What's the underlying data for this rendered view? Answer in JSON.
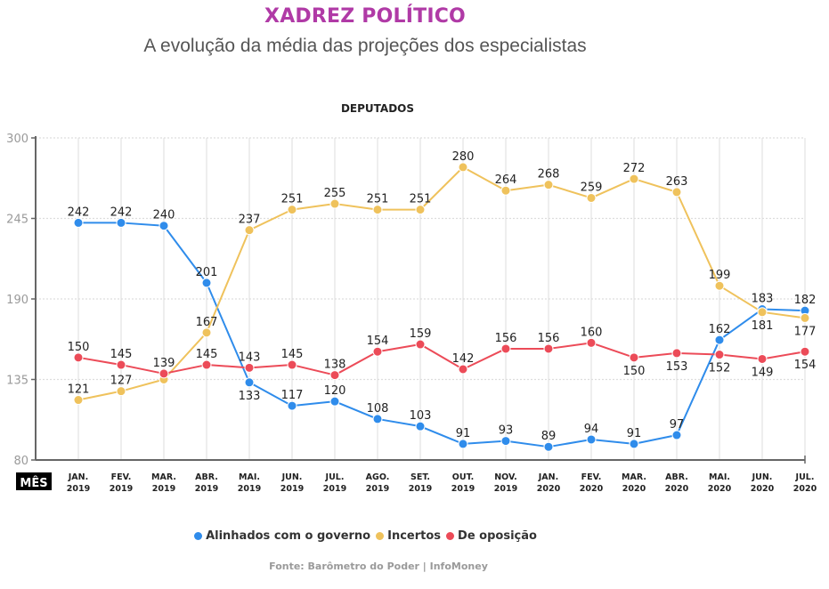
{
  "header": {
    "title": "XADREZ POLÍTICO",
    "title_color": "#b03aa6",
    "subtitle": "A evolução da média das projeções dos especialistas"
  },
  "chart_data": {
    "type": "line",
    "title": "DEPUTADOS",
    "xlabel": "MÊS",
    "ylabel": "",
    "ylim": [
      80,
      300
    ],
    "yticks": [
      80,
      135,
      190,
      245,
      300
    ],
    "grid": true,
    "legend_position": "bottom",
    "categories": [
      [
        "JAN.",
        "2019"
      ],
      [
        "FEV.",
        "2019"
      ],
      [
        "MAR.",
        "2019"
      ],
      [
        "ABR.",
        "2019"
      ],
      [
        "MAI.",
        "2019"
      ],
      [
        "JUN.",
        "2019"
      ],
      [
        "JUL.",
        "2019"
      ],
      [
        "AGO.",
        "2019"
      ],
      [
        "SET.",
        "2019"
      ],
      [
        "OUT.",
        "2019"
      ],
      [
        "NOV.",
        "2019"
      ],
      [
        "JAN.",
        "2020"
      ],
      [
        "FEV.",
        "2020"
      ],
      [
        "MAR.",
        "2020"
      ],
      [
        "ABR.",
        "2020"
      ],
      [
        "MAI.",
        "2020"
      ],
      [
        "JUN.",
        "2020"
      ],
      [
        "JUL.",
        "2020"
      ]
    ],
    "series": [
      {
        "name": "Alinhados com o governo",
        "color": "#2f8ceb",
        "values": [
          242,
          242,
          240,
          201,
          133,
          117,
          120,
          108,
          103,
          91,
          93,
          89,
          94,
          91,
          97,
          162,
          183,
          182
        ],
        "label_pos": [
          "above",
          "above",
          "above",
          "above",
          "below",
          "above",
          "above",
          "above",
          "above",
          "above",
          "above",
          "above",
          "above",
          "above",
          "above",
          "above",
          "above",
          "above"
        ],
        "labeled": [
          true,
          true,
          true,
          true,
          true,
          true,
          true,
          true,
          true,
          true,
          true,
          true,
          true,
          true,
          true,
          true,
          true,
          true
        ]
      },
      {
        "name": "Incertos",
        "color": "#efc25c",
        "values": [
          121,
          127,
          135,
          167,
          237,
          251,
          255,
          251,
          251,
          280,
          264,
          268,
          259,
          272,
          263,
          199,
          181,
          177
        ],
        "label_pos": [
          "above",
          "above",
          "above",
          "above",
          "above",
          "above",
          "above",
          "above",
          "above",
          "above",
          "above",
          "above",
          "above",
          "above",
          "above",
          "above",
          "below",
          "below"
        ],
        "labeled": [
          true,
          true,
          false,
          true,
          true,
          true,
          true,
          true,
          true,
          true,
          true,
          true,
          true,
          true,
          true,
          true,
          true,
          true
        ]
      },
      {
        "name": "De oposição",
        "color": "#ec4b58",
        "values": [
          150,
          145,
          139,
          145,
          143,
          145,
          138,
          154,
          159,
          142,
          156,
          156,
          160,
          150,
          153,
          152,
          149,
          154
        ],
        "label_pos": [
          "above",
          "above",
          "above",
          "above",
          "above",
          "above",
          "above",
          "above",
          "above",
          "above",
          "above",
          "above",
          "above",
          "below",
          "below",
          "below",
          "below",
          "below"
        ],
        "labeled": [
          true,
          true,
          true,
          true,
          true,
          true,
          true,
          true,
          true,
          true,
          true,
          true,
          true,
          true,
          true,
          true,
          true,
          true
        ]
      }
    ]
  },
  "legend": [
    {
      "label": "Alinhados com o governo",
      "color": "#2f8ceb"
    },
    {
      "label": "Incertos",
      "color": "#efc25c"
    },
    {
      "label": "De oposição",
      "color": "#ec4b58"
    }
  ],
  "source": "Fonte: Barômetro do Poder | InfoMoney"
}
